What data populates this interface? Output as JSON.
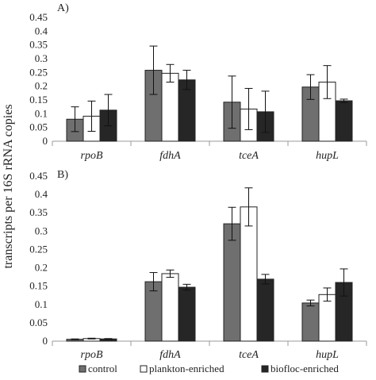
{
  "chart_data": {
    "type": "bar",
    "ylabel": "transcripts per 16S rRNA copies",
    "categories": [
      "rpoB",
      "fdhA",
      "tceA",
      "hupL"
    ],
    "legend": {
      "placement": "bottom",
      "entries": [
        {
          "name": "control",
          "color": "#6f6f6f"
        },
        {
          "name": "plankton-enriched",
          "color": "#ffffff"
        },
        {
          "name": "biofloc-enriched",
          "color": "#262626"
        }
      ]
    },
    "panels": [
      {
        "label": "A)",
        "ylim": [
          0,
          0.45
        ],
        "yticks": [
          "0",
          "0.05",
          "0.1",
          "0.15",
          "0.2",
          "0.25",
          "0.3",
          "0.35",
          "0.4",
          "0.45"
        ],
        "series": [
          {
            "name": "control",
            "values": [
              0.08,
              0.258,
              0.142,
              0.197
            ],
            "errors": [
              0.045,
              0.088,
              0.095,
              0.045
            ]
          },
          {
            "name": "plankton-enriched",
            "values": [
              0.091,
              0.247,
              0.117,
              0.215
            ],
            "errors": [
              0.055,
              0.032,
              0.075,
              0.06
            ]
          },
          {
            "name": "biofloc-enriched",
            "values": [
              0.113,
              0.223,
              0.107,
              0.147
            ],
            "errors": [
              0.057,
              0.035,
              0.075,
              0.006
            ]
          }
        ]
      },
      {
        "label": "B)",
        "ylim": [
          0,
          0.45
        ],
        "yticks": [
          "0",
          "0.05",
          "0.1",
          "0.15",
          "0.2",
          "0.25",
          "0.3",
          "0.35",
          "0.4",
          "0.45"
        ],
        "series": [
          {
            "name": "control",
            "values": [
              0.005,
              0.162,
              0.32,
              0.104
            ],
            "errors": [
              0.001,
              0.025,
              0.045,
              0.008
            ]
          },
          {
            "name": "plankton-enriched",
            "values": [
              0.007,
              0.184,
              0.366,
              0.127
            ],
            "errors": [
              0.001,
              0.01,
              0.052,
              0.018
            ]
          },
          {
            "name": "biofloc-enriched",
            "values": [
              0.006,
              0.147,
              0.169,
              0.16
            ],
            "errors": [
              0.001,
              0.008,
              0.013,
              0.037
            ]
          }
        ]
      }
    ]
  }
}
